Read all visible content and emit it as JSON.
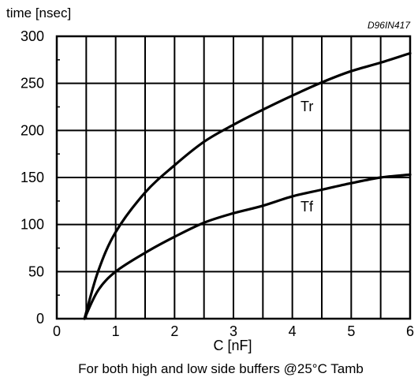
{
  "chart_data": {
    "type": "line",
    "ylabel": "time [nsec]",
    "xlabel": "C [nF]",
    "code": "D96IN417",
    "caption": "For both high and low side buffers @25°C Tamb",
    "xlim": [
      0,
      6
    ],
    "ylim": [
      0,
      300
    ],
    "x_ticks": [
      0,
      1,
      2,
      3,
      4,
      5,
      6
    ],
    "y_ticks": [
      0,
      50,
      100,
      150,
      200,
      250,
      300
    ],
    "x_tick_labels": [
      "0",
      "1",
      "2",
      "3",
      "4",
      "5",
      "6"
    ],
    "y_tick_labels": [
      "0",
      "50",
      "100",
      "150",
      "200",
      "250",
      "300"
    ],
    "grid": true,
    "series": [
      {
        "name": "Tr",
        "x": [
          0.47,
          0.7,
          1.0,
          1.5,
          2.0,
          2.5,
          3.0,
          3.5,
          4.0,
          4.5,
          5.0,
          5.5,
          6.0
        ],
        "y": [
          0,
          50,
          92,
          134,
          163,
          188,
          206,
          222,
          237,
          251,
          263,
          272,
          282
        ]
      },
      {
        "name": "Tf",
        "x": [
          0.47,
          0.7,
          1.0,
          1.5,
          2.0,
          2.5,
          3.0,
          3.5,
          4.0,
          4.5,
          5.0,
          5.5,
          6.0
        ],
        "y": [
          0,
          30,
          50,
          70,
          87,
          102,
          112,
          120,
          130,
          137,
          144,
          150,
          153
        ]
      }
    ]
  }
}
